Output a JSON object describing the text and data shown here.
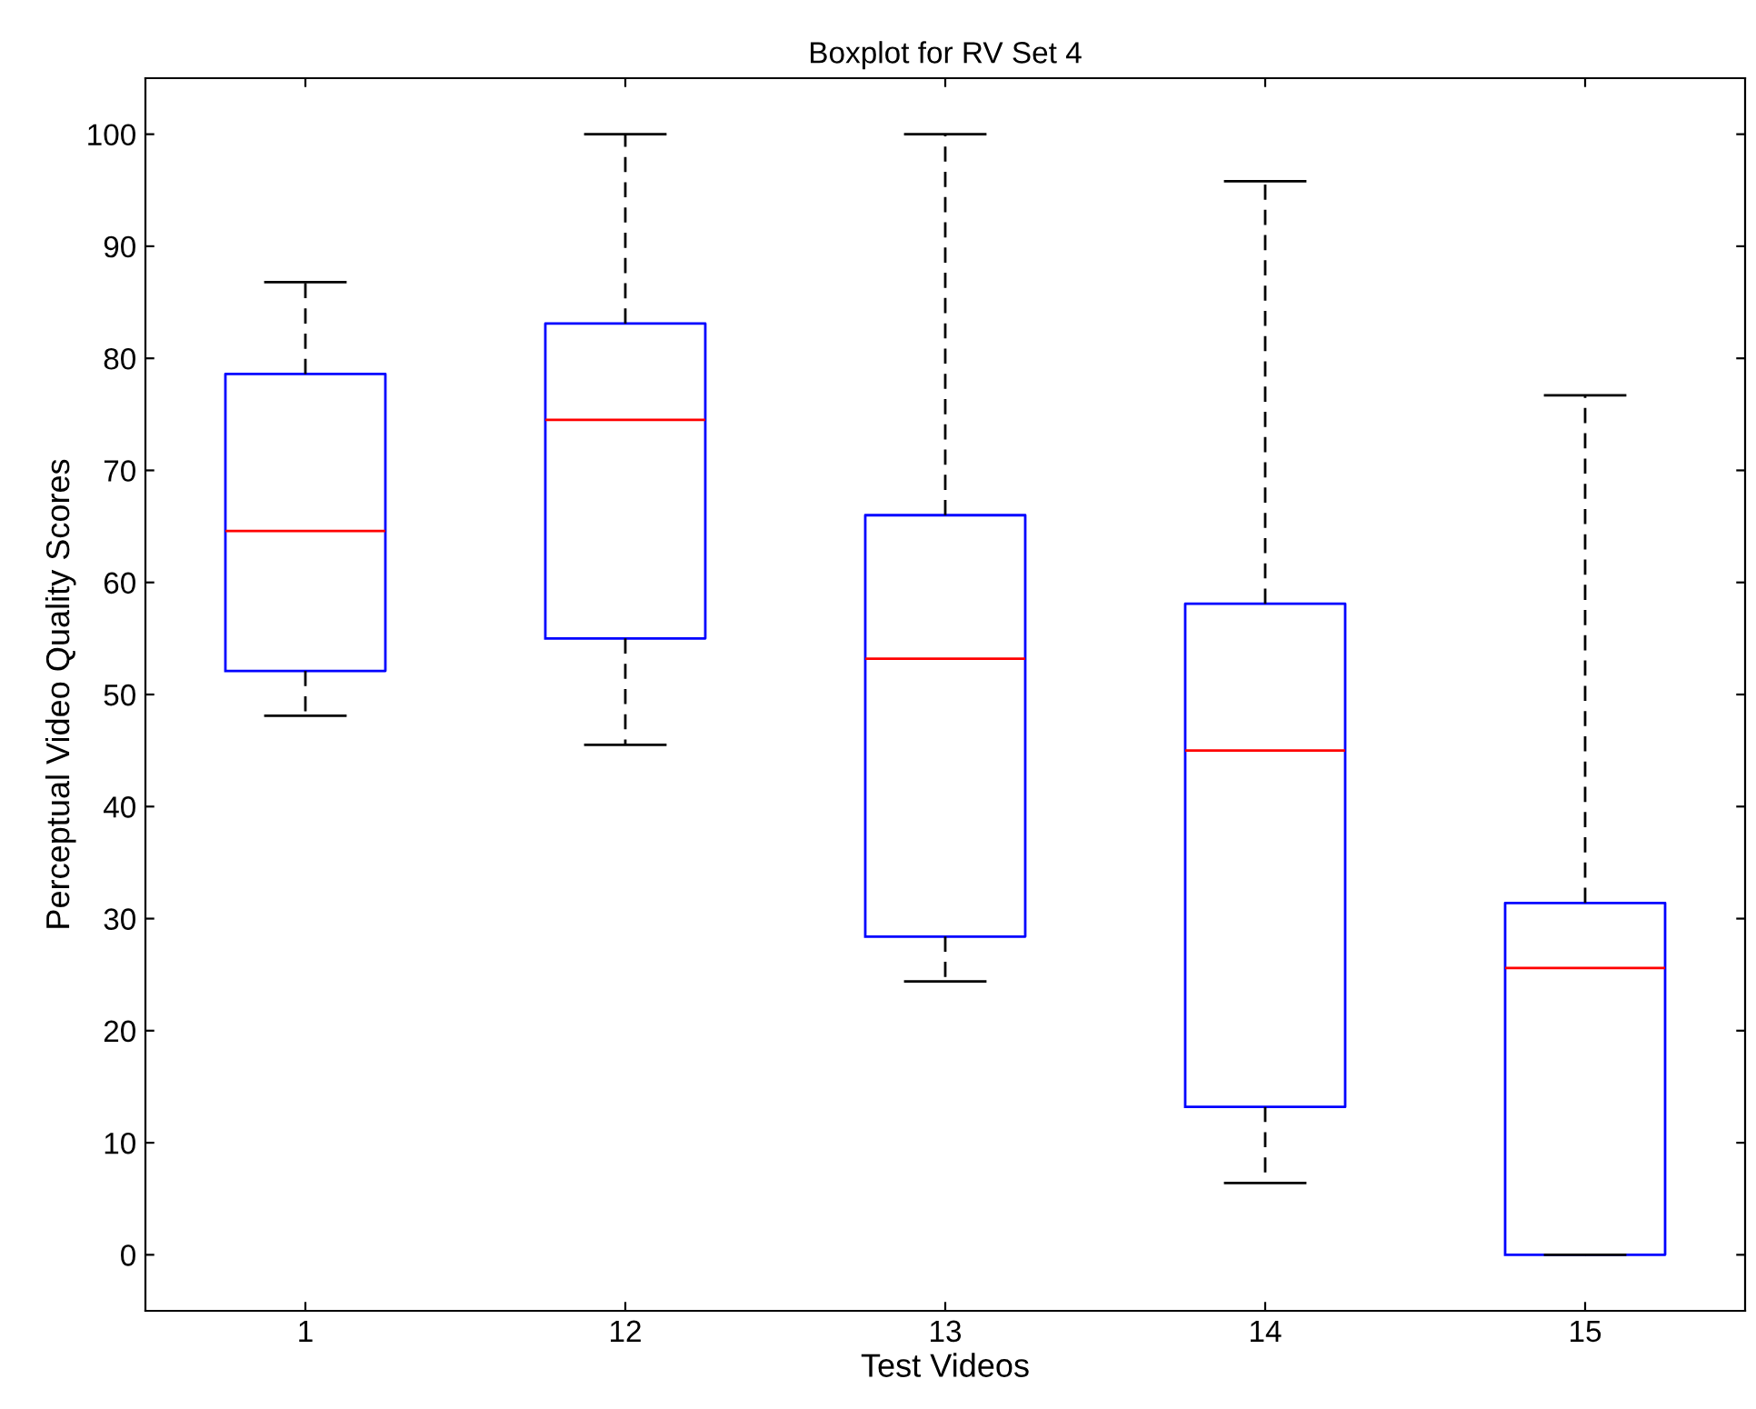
{
  "chart_data": {
    "type": "box",
    "title": "Boxplot for RV Set 4",
    "xlabel": "Test Videos",
    "ylabel": "Perceptual Video Quality Scores",
    "categories": [
      "1",
      "12",
      "13",
      "14",
      "15"
    ],
    "boxes": [
      {
        "low": 48.1,
        "q1": 52.1,
        "median": 64.6,
        "q3": 78.6,
        "high": 86.8
      },
      {
        "low": 45.5,
        "q1": 55.0,
        "median": 74.5,
        "q3": 83.1,
        "high": 100
      },
      {
        "low": 24.4,
        "q1": 28.4,
        "median": 53.2,
        "q3": 66.0,
        "high": 100
      },
      {
        "low": 6.4,
        "q1": 13.2,
        "median": 45.0,
        "q3": 58.1,
        "high": 95.8
      },
      {
        "low": 0,
        "q1": 0,
        "median": 25.6,
        "q3": 31.4,
        "high": 76.7
      }
    ],
    "color": "#0000ff",
    "ylim": [
      -5,
      105
    ],
    "yticks": [
      0,
      10,
      20,
      30,
      40,
      50,
      60,
      70,
      80,
      90,
      100
    ],
    "grid": false
  }
}
